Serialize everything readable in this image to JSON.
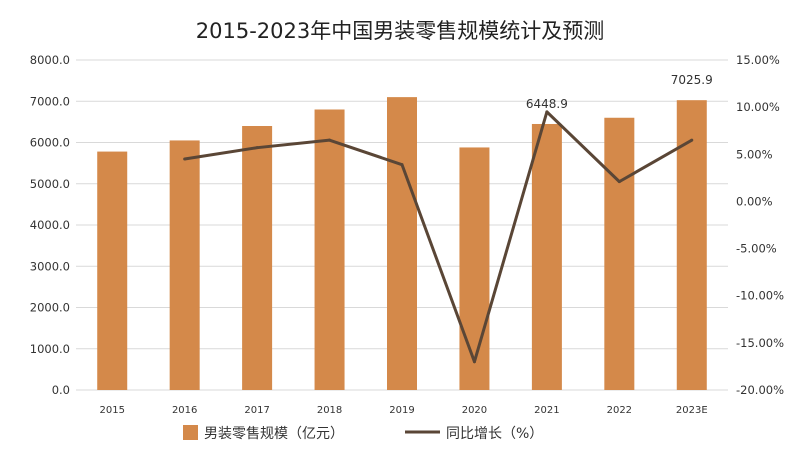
{
  "chart_data": {
    "type": "bar",
    "title": "2015-2023年中国男装零售规模统计及预测",
    "categories": [
      "2015",
      "2016",
      "2017",
      "2018",
      "2019",
      "2020",
      "2021",
      "2022",
      "2023E"
    ],
    "series": [
      {
        "name": "男装零售规模（亿元）",
        "type": "bar",
        "axis": "left",
        "color": "#d4894a",
        "values": [
          5780,
          6050,
          6400,
          6800,
          7100,
          5880,
          6448.9,
          6600,
          7025.9
        ]
      },
      {
        "name": "同比增长（%）",
        "type": "line",
        "axis": "right",
        "color": "#5a4636",
        "values": [
          null,
          4.5,
          5.7,
          6.5,
          3.9,
          -17.0,
          9.5,
          2.1,
          6.5
        ]
      }
    ],
    "data_labels": [
      {
        "category": "2021",
        "series": "男装零售规模（亿元）",
        "text": "6448.9"
      },
      {
        "category": "2023E",
        "series": "男装零售规模（亿元）",
        "text": "7025.9"
      }
    ],
    "y_left": {
      "ylim": [
        0,
        8000
      ],
      "ticks": [
        "0.0",
        "1000.0",
        "2000.0",
        "3000.0",
        "4000.0",
        "5000.0",
        "6000.0",
        "7000.0",
        "8000.0"
      ]
    },
    "y_right": {
      "ylim": [
        -20,
        15
      ],
      "ticks": [
        "-20.00%",
        "-15.00%",
        "-10.00%",
        "-5.00%",
        "0.00%",
        "5.00%",
        "10.00%",
        "15.00%"
      ]
    },
    "grid": true,
    "legend": "bottom"
  }
}
